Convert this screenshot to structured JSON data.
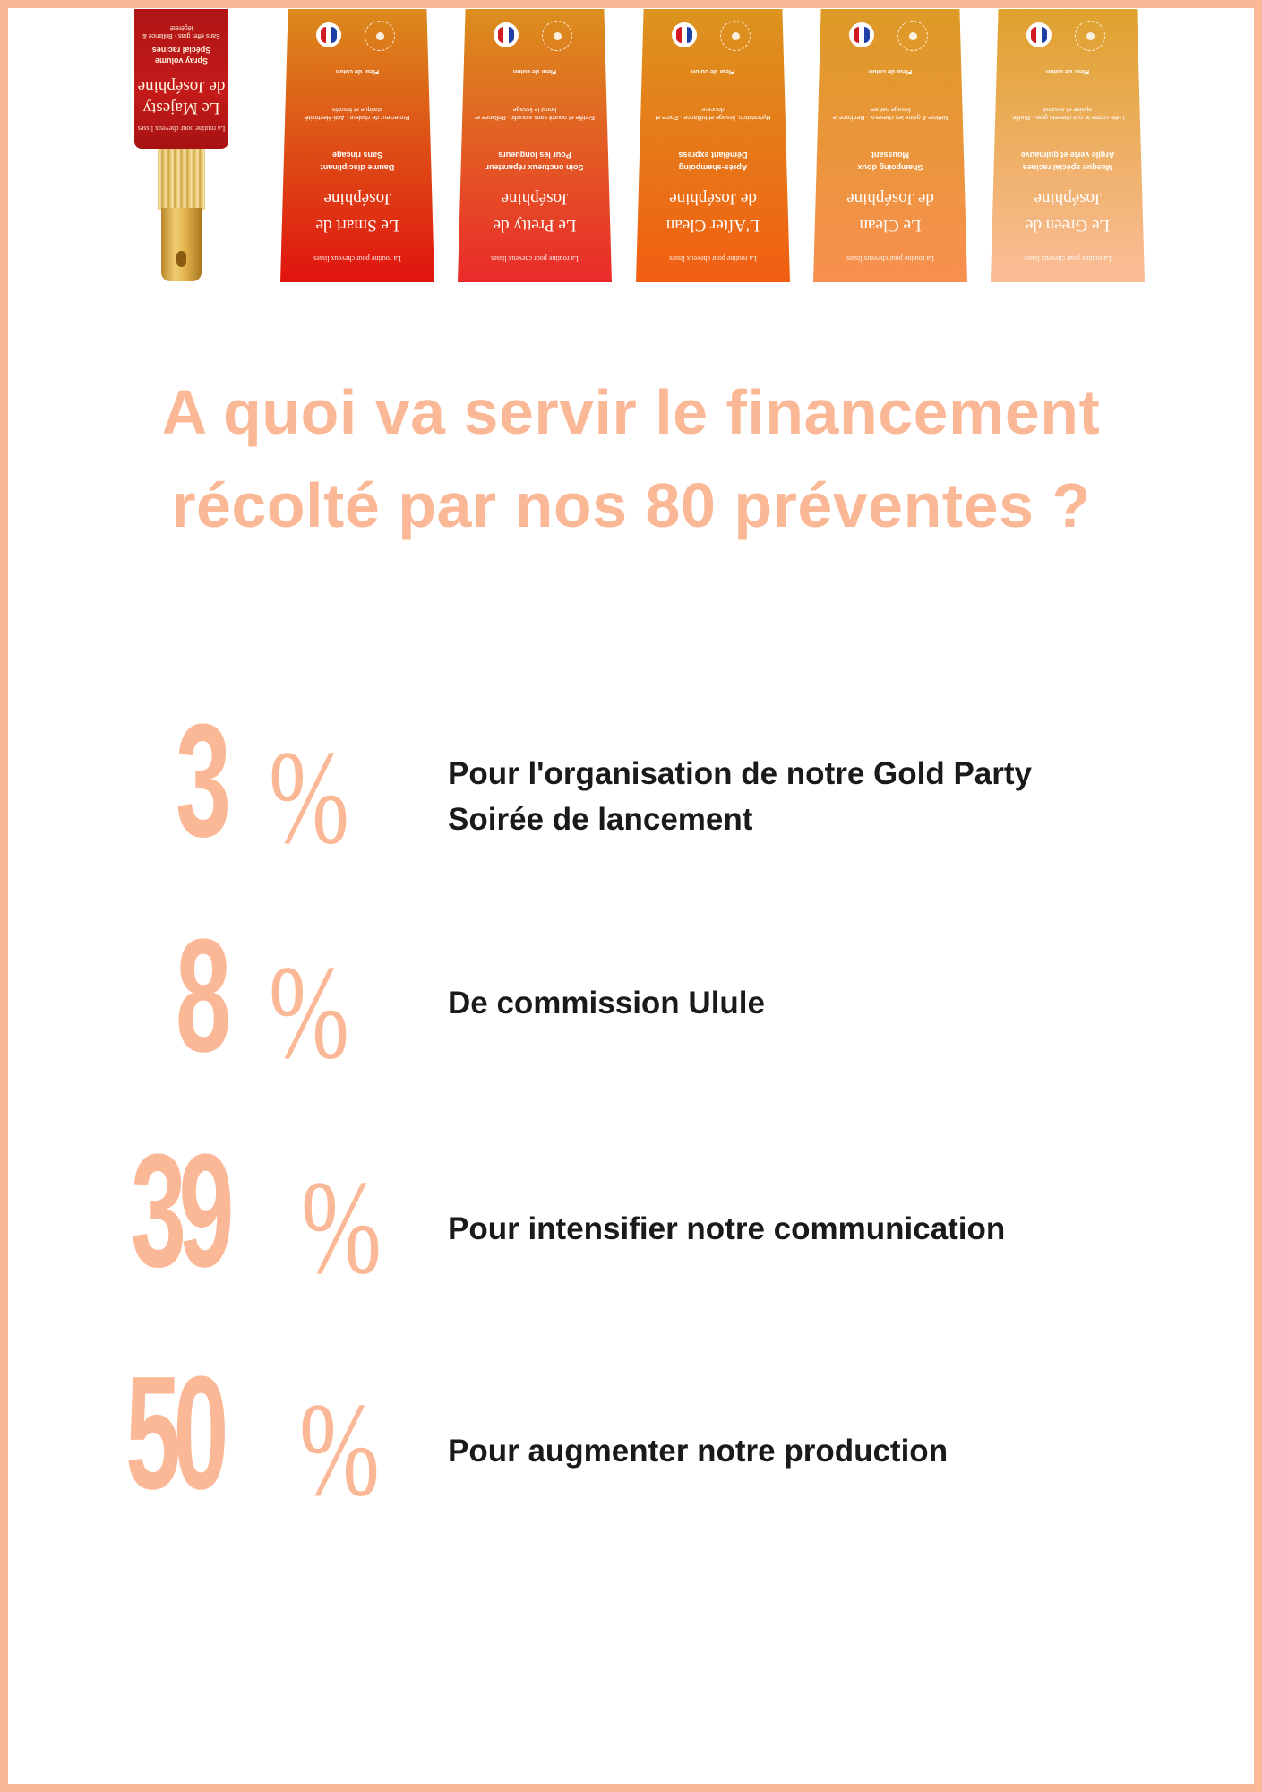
{
  "colors": {
    "accent": "#fbb897",
    "text": "#1a1a1a",
    "background": "#ffffff"
  },
  "products": [
    {
      "kind": "bottle",
      "top_line": "La routine pour cheveux lisses",
      "name_1": "Le Majesty",
      "name_2": "de Joséphine",
      "type_1": "Spray volume",
      "type_2": "Spécial racines",
      "desc": "Sans effet gras · Brillance & légèreté",
      "gradient_top": "#b01515",
      "gradient_bottom": "#a81212"
    },
    {
      "kind": "tube",
      "top_line": "La routine pour cheveux lisses",
      "name_1": "Le Smart de",
      "name_2": "Joséphine",
      "type_1": "Baume disciplinant",
      "type_2": "Sans rinçage",
      "desc": "Protecteur de chaleur · Anti-électricité statique et frisottis",
      "ingredient": "Fleur de coton",
      "gradient_top": "#dc8a1d",
      "gradient_bottom": "#e0140f"
    },
    {
      "kind": "tube",
      "top_line": "La routine pour cheveux lisses",
      "name_1": "Le Pretty de",
      "name_2": "Joséphine",
      "type_1": "Soin onctueux réparateur",
      "type_2": "Pour les longueurs",
      "desc": "Fortifie et nourrit sans alourdir · Brillance et boost le lissage",
      "ingredient": "Fleur de coton",
      "gradient_top": "#db8f1d",
      "gradient_bottom": "#ea2a2a"
    },
    {
      "kind": "tube",
      "top_line": "La routine pour cheveux lisses",
      "name_1": "L'After Clean",
      "name_2": "de Joséphine",
      "type_1": "Après-shampoing",
      "type_2": "Démêlant express",
      "desc": "Hydratation, lissage et brillance · Force et douceur",
      "ingredient": "Fleur de coton",
      "gradient_top": "#dc941f",
      "gradient_bottom": "#f25e12"
    },
    {
      "kind": "tube",
      "top_line": "La routine pour cheveux lisses",
      "name_1": "Le Clean",
      "name_2": "de Joséphine",
      "type_1": "Shampoing doux",
      "type_2": "Moussant",
      "desc": "Nettoie & gaine les cheveux · Renforce le lissage naturel",
      "ingredient": "Fleur de coton",
      "gradient_top": "#dd9a25",
      "gradient_bottom": "#f89050"
    },
    {
      "kind": "tube",
      "top_line": "La routine pour cheveux lisses",
      "name_1": "Le Green de",
      "name_2": "Joséphine",
      "type_1": "Masque spécial racines",
      "type_2": "Argile verte et guimauve",
      "desc": "Lutte contre le cuir chevelu gras · Purifie, apaise et assainit",
      "ingredient": "Fleur de coton",
      "gradient_top": "#dfa12c",
      "gradient_bottom": "#fbbd98"
    }
  ],
  "headline": {
    "line1": "A quoi va servir le financement",
    "line2": "récolté par nos 80 préventes ?"
  },
  "allocation": [
    {
      "percent": "3",
      "sign": "%",
      "line1": "Pour l'organisation de notre Gold Party",
      "line2": "Soirée de lancement"
    },
    {
      "percent": "8",
      "sign": "%",
      "line1": "De commission Ulule",
      "line2": ""
    },
    {
      "percent": "39",
      "sign": "%",
      "line1": "Pour intensifier notre communication",
      "line2": ""
    },
    {
      "percent": "50",
      "sign": "%",
      "line1": "Pour augmenter notre production",
      "line2": ""
    }
  ]
}
